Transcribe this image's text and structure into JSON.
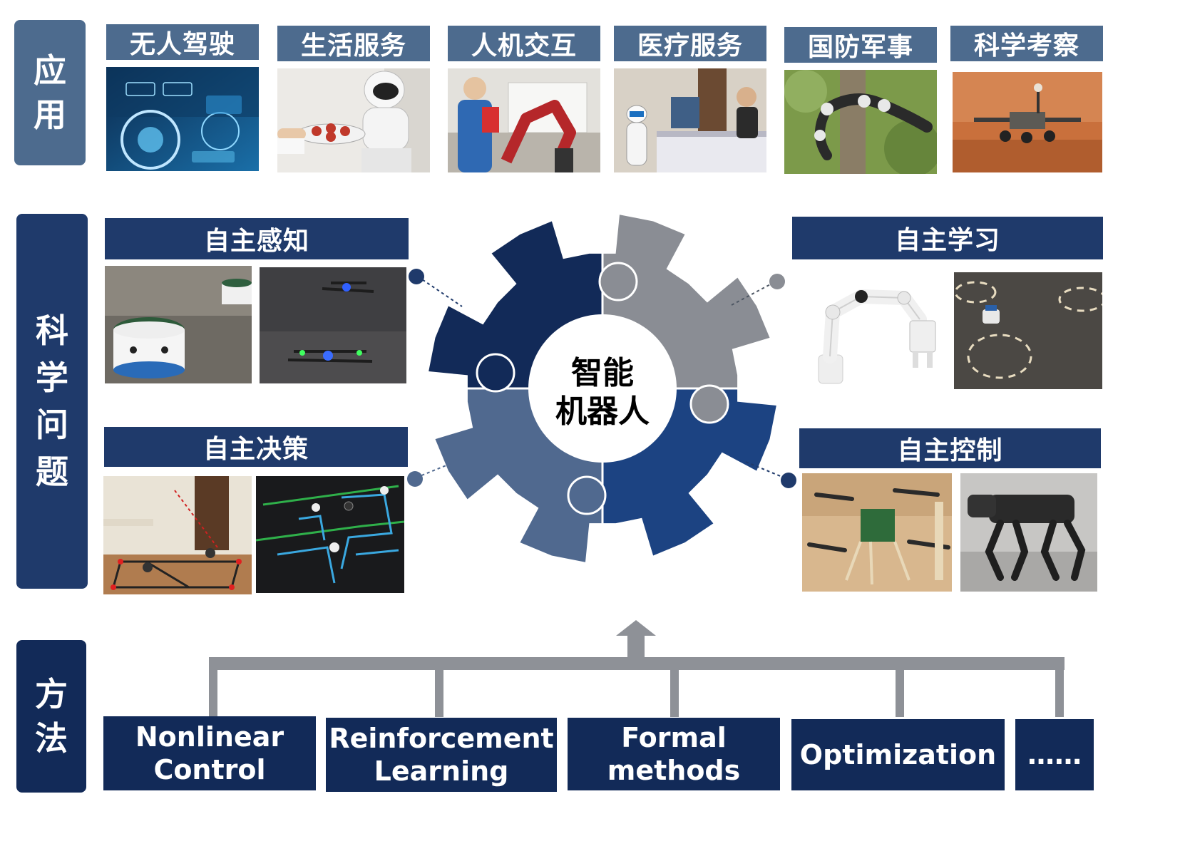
{
  "sections": {
    "application": "应用",
    "science": "科学问题",
    "methods": "方法"
  },
  "applications": [
    {
      "label": "无人驾驶"
    },
    {
      "label": "生活服务"
    },
    {
      "label": "人机交互"
    },
    {
      "label": "医疗服务"
    },
    {
      "label": "国防军事"
    },
    {
      "label": "科学考察"
    }
  ],
  "topics": {
    "perception": "自主感知",
    "learning": "自主学习",
    "decision": "自主决策",
    "control": "自主控制"
  },
  "center": {
    "label": "智能\n机器人"
  },
  "methods": [
    {
      "label": "Nonlinear\nControl"
    },
    {
      "label": "Reinforcement\nLearning"
    },
    {
      "label": "Formal\nmethods"
    },
    {
      "label": "Optimization"
    },
    {
      "label": "……"
    }
  ],
  "colors": {
    "dark_navy": "#122a58",
    "navy": "#1f3a6b",
    "slate_blue": "#4d6b8e",
    "steel": "#50698f",
    "gray": "#8a8d94",
    "connector_gray": "#8e9197"
  }
}
